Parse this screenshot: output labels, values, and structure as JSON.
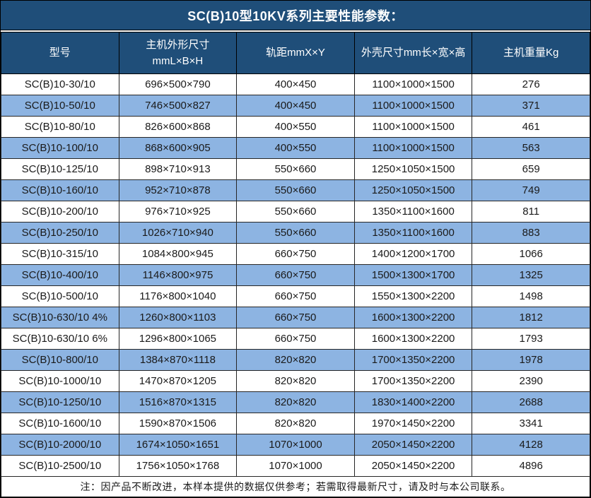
{
  "title": "SC(B)10型10KV系列主要性能参数：",
  "colors": {
    "header_navy": "#1F4E79",
    "stripe_blue": "#8DB4E2",
    "border_black": "#000000",
    "row_white": "#FFFFFF",
    "header_text": "#FFFFFF",
    "body_text": "#1A1A1A"
  },
  "table": {
    "columns": [
      {
        "line1": "型号",
        "line2": ""
      },
      {
        "line1": "主机外形尺寸",
        "line2": "mmL×B×H"
      },
      {
        "line1": "轨距mmX×Y",
        "line2": ""
      },
      {
        "line1": "外壳尺寸mm长×宽×高",
        "line2": ""
      },
      {
        "line1": "主机重量Kg",
        "line2": ""
      }
    ],
    "rows": [
      [
        "SC(B)10-30/10",
        "696×500×790",
        "400×450",
        "1100×1000×1500",
        "276"
      ],
      [
        "SC(B)10-50/10",
        "746×500×827",
        "400×450",
        "1100×1000×1500",
        "371"
      ],
      [
        "SC(B)10-80/10",
        "826×600×868",
        "400×550",
        "1100×1000×1500",
        "461"
      ],
      [
        "SC(B)10-100/10",
        "868×600×905",
        "400×550",
        "1100×1000×1500",
        "563"
      ],
      [
        "SC(B)10-125/10",
        "898×710×913",
        "550×660",
        "1250×1050×1500",
        "659"
      ],
      [
        "SC(B)10-160/10",
        "952×710×878",
        "550×660",
        "1250×1050×1500",
        "749"
      ],
      [
        "SC(B)10-200/10",
        "976×710×925",
        "550×660",
        "1350×1100×1600",
        "811"
      ],
      [
        "SC(B)10-250/10",
        "1026×710×940",
        "550×660",
        "1350×1100×1600",
        "883"
      ],
      [
        "SC(B)10-315/10",
        "1084×800×945",
        "660×750",
        "1400×1200×1700",
        "1066"
      ],
      [
        "SC(B)10-400/10",
        "1146×800×975",
        "660×750",
        "1500×1300×1700",
        "1325"
      ],
      [
        "SC(B)10-500/10",
        "1176×800×1040",
        "660×750",
        "1550×1300×2200",
        "1498"
      ],
      [
        "SC(B)10-630/10 4%",
        "1260×800×1103",
        "660×750",
        "1600×1300×2200",
        "1812"
      ],
      [
        "SC(B)10-630/10 6%",
        "1296×800×1065",
        "660×750",
        "1600×1300×2200",
        "1793"
      ],
      [
        "SC(B)10-800/10",
        "1384×870×1118",
        "820×820",
        "1700×1350×2200",
        "1978"
      ],
      [
        "SC(B)10-1000/10",
        "1470×870×1205",
        "820×820",
        "1700×1350×2200",
        "2390"
      ],
      [
        "SC(B)10-1250/10",
        "1516×870×1315",
        "820×820",
        "1830×1400×2200",
        "2688"
      ],
      [
        "SC(B)10-1600/10",
        "1590×870×1506",
        "820×820",
        "1970×1450×2200",
        "3341"
      ],
      [
        "SC(B)10-2000/10",
        "1674×1050×1651",
        "1070×1000",
        "2050×1450×2200",
        "4128"
      ],
      [
        "SC(B)10-2500/10",
        "1756×1050×1768",
        "1070×1000",
        "2050×1450×2200",
        "4896"
      ]
    ]
  },
  "footer": {
    "note": "注：因产品不断改进，本样本提供的数据仅供参考；若需取得最新尺寸，请及时与本公司联系。"
  }
}
